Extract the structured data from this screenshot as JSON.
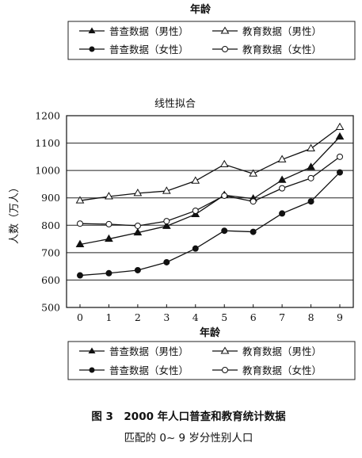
{
  "top_fragment": {
    "xlabel": "年龄"
  },
  "legend_top": [
    {
      "label": "普查数据（男性）",
      "marker": "filled-triangle"
    },
    {
      "label": "教育数据（男性）",
      "marker": "open-triangle"
    },
    {
      "label": "普查数据（女性）",
      "marker": "filled-circle"
    },
    {
      "label": "教育数据（女性）",
      "marker": "open-circle"
    }
  ],
  "chart_data": {
    "type": "line",
    "title": "线性拟合",
    "xlabel": "年龄",
    "ylabel": "人数（万人）",
    "x": [
      0,
      1,
      2,
      3,
      4,
      5,
      6,
      7,
      8,
      9
    ],
    "xticks": [
      "0",
      "1",
      "2",
      "3",
      "4",
      "5",
      "6",
      "7",
      "8",
      "9"
    ],
    "yticks": [
      "500",
      "600",
      "700",
      "800",
      "900",
      "1000",
      "1100",
      "1200"
    ],
    "ylim": [
      500,
      1200
    ],
    "grid": "horizontal",
    "legend": "bottom",
    "series": [
      {
        "name": "普查数据（男性）",
        "marker": "filled-triangle",
        "values": [
          730,
          750,
          773,
          797,
          840,
          910,
          897,
          965,
          1012,
          1123
        ]
      },
      {
        "name": "教育数据（男性）",
        "marker": "open-triangle",
        "values": [
          890,
          905,
          917,
          925,
          962,
          1022,
          988,
          1040,
          1080,
          1158
        ]
      },
      {
        "name": "普查数据（女性）",
        "marker": "filled-circle",
        "values": [
          617,
          625,
          636,
          665,
          715,
          780,
          776,
          843,
          887,
          993
        ]
      },
      {
        "name": "教育数据（女性）",
        "marker": "open-circle",
        "values": [
          806,
          804,
          798,
          815,
          853,
          908,
          887,
          935,
          972,
          1050
        ]
      }
    ]
  },
  "caption": {
    "line1": "图 3　2000 年人口普查和教育统计数据",
    "line2": "匹配的 0~ 9 岁分性别人口"
  }
}
